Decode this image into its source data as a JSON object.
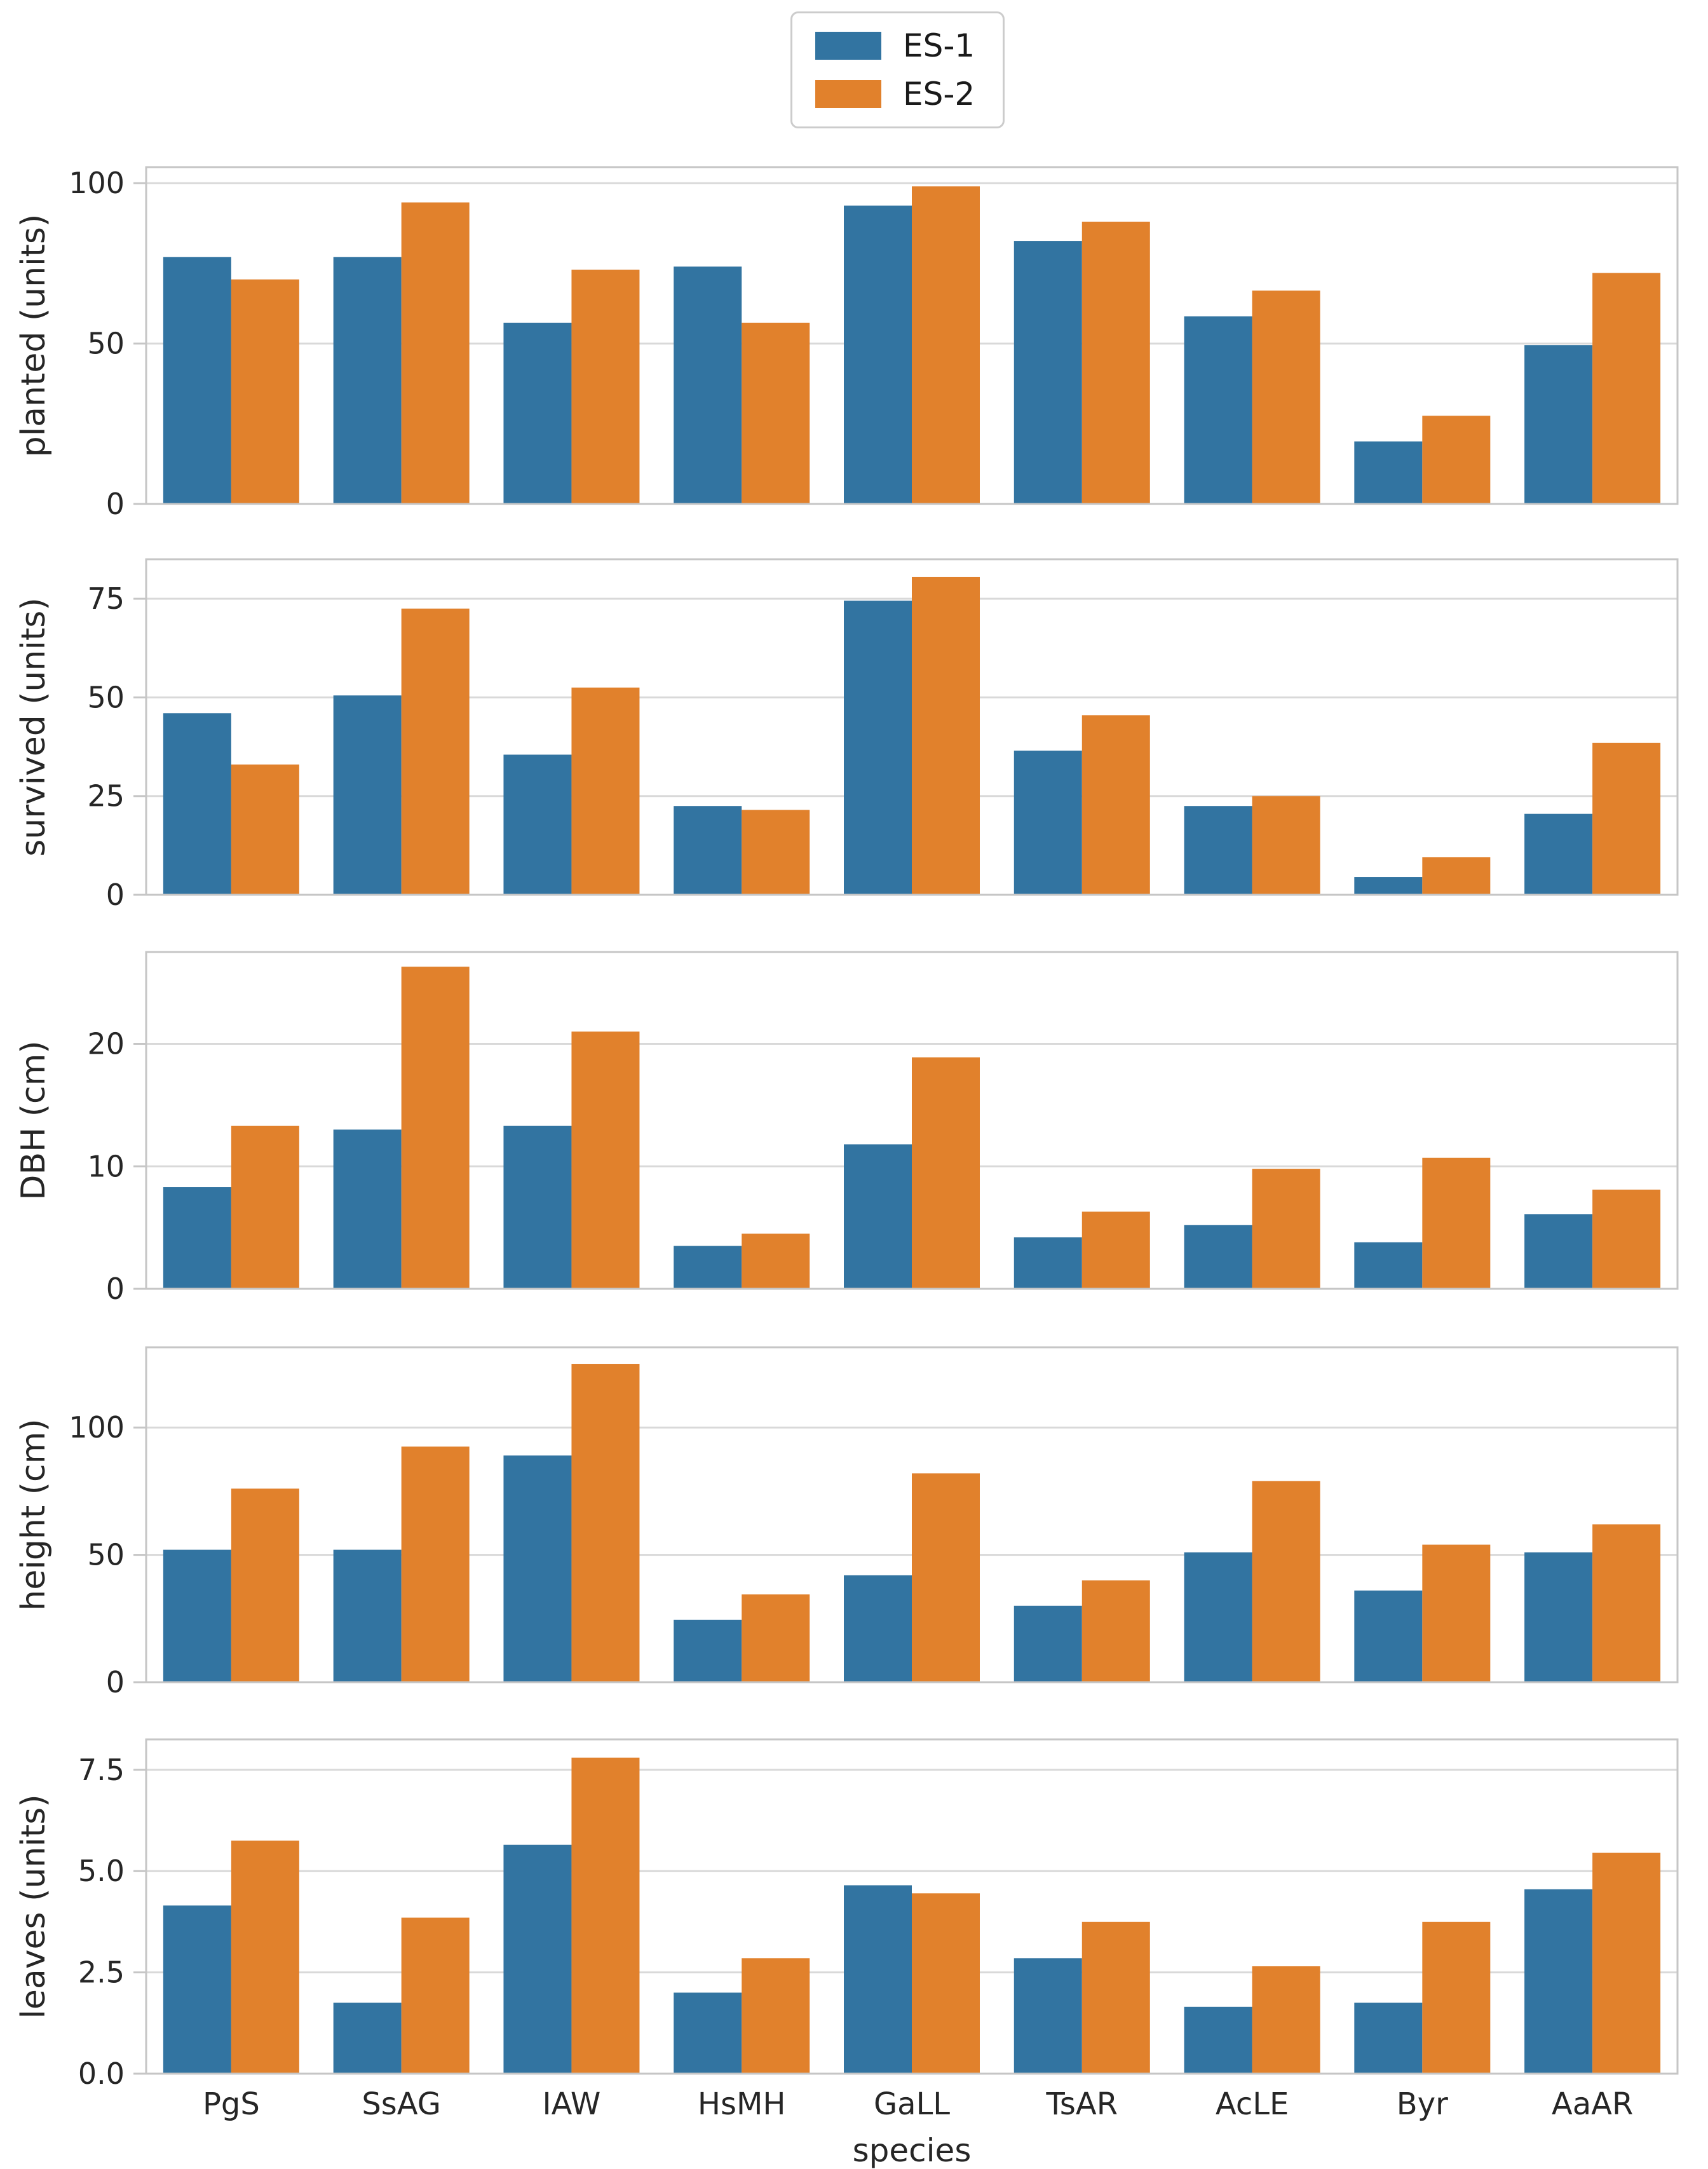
{
  "legend": {
    "items": [
      {
        "label": "ES-1",
        "color": "#3274a1"
      },
      {
        "label": "ES-2",
        "color": "#e1812c"
      }
    ]
  },
  "xlabel": "species",
  "categories": [
    "PgS",
    "SsAG",
    "IAW",
    "HsMH",
    "GaLL",
    "TsAR",
    "AcLE",
    "Byr",
    "AaAR"
  ],
  "colors": {
    "grid": "#d9d9d9",
    "spine": "#c6c6c6",
    "text": "#262626"
  },
  "chart_data": [
    {
      "type": "bar",
      "id": "planted",
      "ylabel": "planted (units)",
      "yticks": [
        0,
        50,
        100
      ],
      "yticklabels": [
        "0",
        "50",
        "100"
      ],
      "ylim": [
        0,
        105
      ],
      "grid": true,
      "legend_position": "upper center above figure",
      "xticklabels_visible": false,
      "categories": [
        "PgS",
        "SsAG",
        "IAW",
        "HsMH",
        "GaLL",
        "TsAR",
        "AcLE",
        "Byr",
        "AaAR"
      ],
      "series": [
        {
          "name": "ES-1",
          "color": "#3274a1",
          "values": [
            77,
            77,
            56.5,
            74,
            93,
            82,
            58.5,
            19.5,
            49.5
          ]
        },
        {
          "name": "ES-2",
          "color": "#e1812c",
          "values": [
            70,
            94,
            73,
            56.5,
            99,
            88,
            66.5,
            27.5,
            72
          ]
        }
      ]
    },
    {
      "type": "bar",
      "id": "survived",
      "ylabel": "survived (units)",
      "yticks": [
        0,
        25,
        50,
        75
      ],
      "yticklabels": [
        "0",
        "25",
        "50",
        "75"
      ],
      "ylim": [
        0,
        85
      ],
      "grid": true,
      "xticklabels_visible": false,
      "categories": [
        "PgS",
        "SsAG",
        "IAW",
        "HsMH",
        "GaLL",
        "TsAR",
        "AcLE",
        "Byr",
        "AaAR"
      ],
      "series": [
        {
          "name": "ES-1",
          "color": "#3274a1",
          "values": [
            46,
            50.5,
            35.5,
            22.5,
            74.5,
            36.5,
            22.5,
            4.5,
            20.5
          ]
        },
        {
          "name": "ES-2",
          "color": "#e1812c",
          "values": [
            33,
            72.5,
            52.5,
            21.5,
            80.5,
            45.5,
            25,
            9.5,
            38.5
          ]
        }
      ]
    },
    {
      "type": "bar",
      "id": "dbh",
      "ylabel": "DBH (cm)",
      "yticks": [
        0,
        10,
        20
      ],
      "yticklabels": [
        "0",
        "10",
        "20"
      ],
      "ylim": [
        0,
        27.5
      ],
      "grid": true,
      "xticklabels_visible": false,
      "categories": [
        "PgS",
        "SsAG",
        "IAW",
        "HsMH",
        "GaLL",
        "TsAR",
        "AcLE",
        "Byr",
        "AaAR"
      ],
      "series": [
        {
          "name": "ES-1",
          "color": "#3274a1",
          "values": [
            8.3,
            13,
            13.3,
            3.5,
            11.8,
            4.2,
            5.2,
            3.8,
            6.1
          ]
        },
        {
          "name": "ES-2",
          "color": "#e1812c",
          "values": [
            13.3,
            26.3,
            21,
            4.5,
            18.9,
            6.3,
            9.8,
            10.7,
            8.1
          ]
        }
      ]
    },
    {
      "type": "bar",
      "id": "height",
      "ylabel": "height (cm)",
      "yticks": [
        0,
        50,
        100
      ],
      "yticklabels": [
        "0",
        "50",
        "100"
      ],
      "ylim": [
        0,
        131.5
      ],
      "grid": true,
      "xticklabels_visible": false,
      "categories": [
        "PgS",
        "SsAG",
        "IAW",
        "HsMH",
        "GaLL",
        "TsAR",
        "AcLE",
        "Byr",
        "AaAR"
      ],
      "series": [
        {
          "name": "ES-1",
          "color": "#3274a1",
          "values": [
            52,
            52,
            89,
            24.5,
            42,
            30,
            51,
            36,
            51
          ]
        },
        {
          "name": "ES-2",
          "color": "#e1812c",
          "values": [
            76,
            92.5,
            125,
            34.5,
            82,
            40,
            79,
            54,
            62
          ]
        }
      ]
    },
    {
      "type": "bar",
      "id": "leaves",
      "ylabel": "leaves (units)",
      "yticks": [
        0,
        2.5,
        5,
        7.5
      ],
      "yticklabels": [
        "0.0",
        "2.5",
        "5.0",
        "7.5"
      ],
      "ylim": [
        0,
        8.25
      ],
      "grid": true,
      "xticklabels_visible": true,
      "categories": [
        "PgS",
        "SsAG",
        "IAW",
        "HsMH",
        "GaLL",
        "TsAR",
        "AcLE",
        "Byr",
        "AaAR"
      ],
      "series": [
        {
          "name": "ES-1",
          "color": "#3274a1",
          "values": [
            4.15,
            1.75,
            5.65,
            2.0,
            4.65,
            2.85,
            1.65,
            1.75,
            4.55
          ]
        },
        {
          "name": "ES-2",
          "color": "#e1812c",
          "values": [
            5.75,
            3.85,
            7.8,
            2.85,
            4.45,
            3.75,
            2.65,
            3.75,
            5.45
          ]
        }
      ]
    }
  ]
}
